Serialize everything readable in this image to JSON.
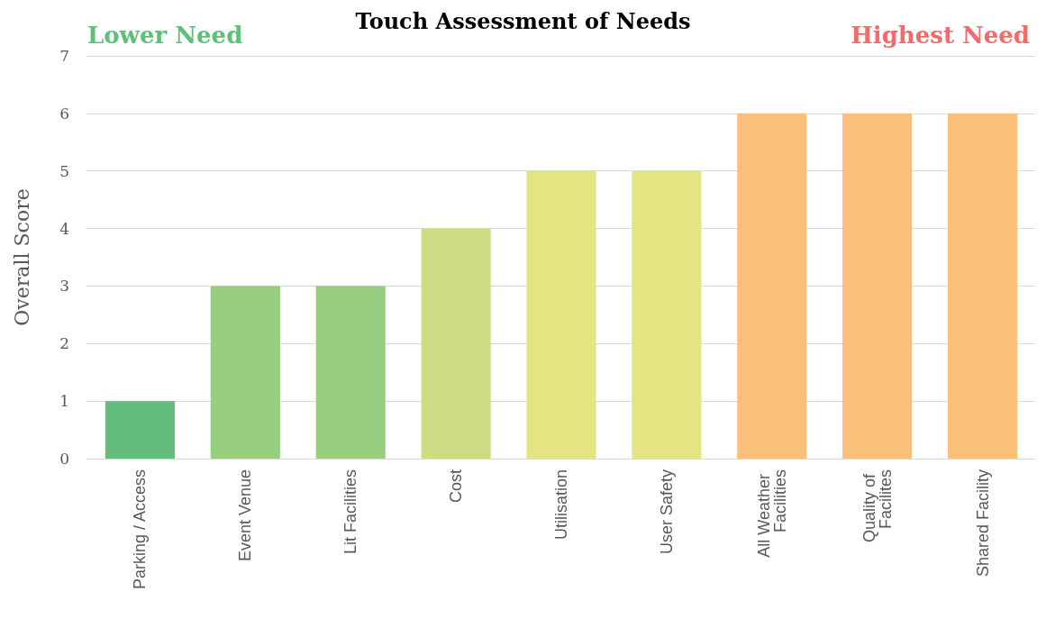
{
  "chart_data": {
    "type": "bar",
    "title": "Touch Assessment of Needs",
    "ylabel": "Overall Score",
    "categories": [
      "Parking / Access",
      "Event Venue",
      "Lit Facilities",
      "Cost",
      "Utilisation",
      "User Safety",
      "All Weather Facilities",
      "Quality of Facilites",
      "Shared Facility"
    ],
    "values": [
      1,
      3,
      3,
      4,
      5,
      5,
      6,
      6,
      6
    ],
    "colors": [
      "#63be7b",
      "#98ce7f",
      "#98ce7f",
      "#cdde82",
      "#e5e483",
      "#e5e483",
      "#fabf7b",
      "#fabf7b",
      "#fabf7b"
    ],
    "ylim": [
      0,
      7
    ],
    "yticks": [
      0,
      1,
      2,
      3,
      4,
      5,
      6,
      7
    ],
    "grid": "y",
    "annotations": [
      "Lower Need",
      "Highest Need"
    ]
  }
}
